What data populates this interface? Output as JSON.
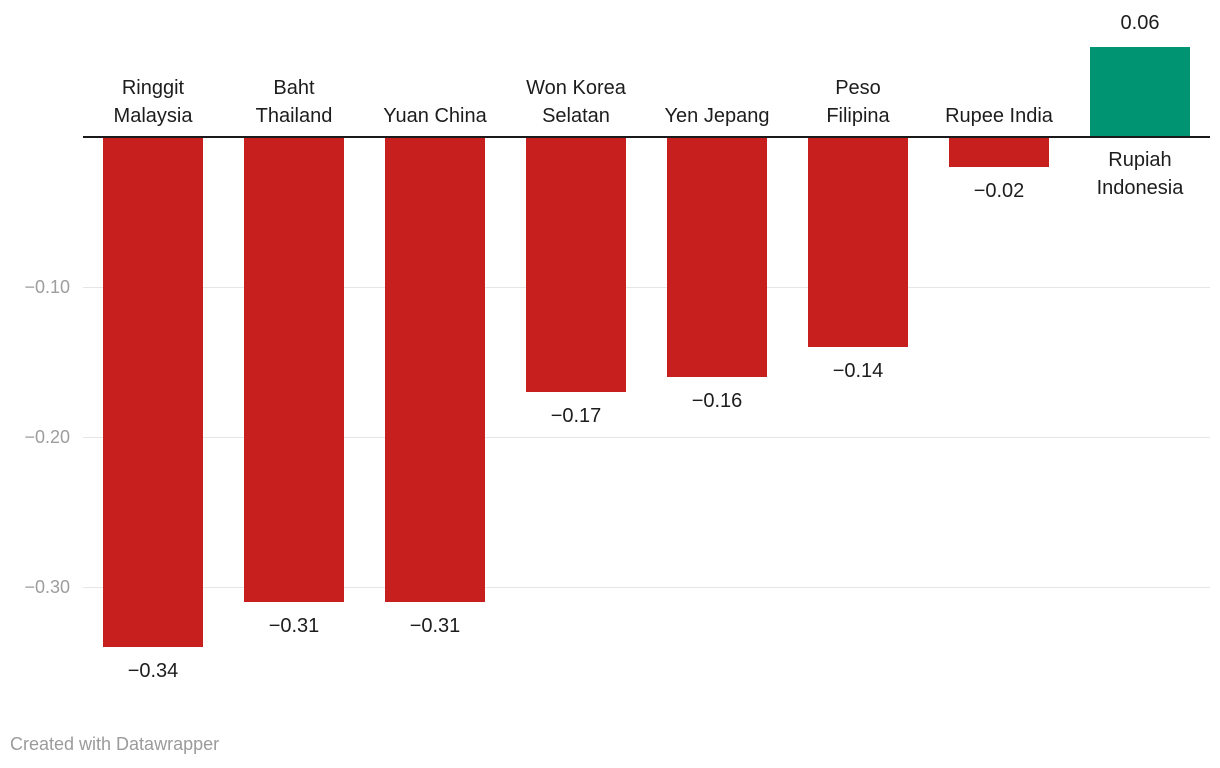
{
  "chart": {
    "footer": "Created with Datawrapper"
  },
  "chart_data": {
    "type": "bar",
    "categories": [
      "Ringgit Malaysia",
      "Baht Thailand",
      "Yuan China",
      "Won Korea Selatan",
      "Yen Jepang",
      "Peso Filipina",
      "Rupee India",
      "Rupiah Indonesia"
    ],
    "values": [
      -0.34,
      -0.31,
      -0.31,
      -0.17,
      -0.16,
      -0.14,
      -0.02,
      0.06
    ],
    "value_labels": [
      "−0.34",
      "−0.31",
      "−0.31",
      "−0.17",
      "−0.16",
      "−0.14",
      "−0.02",
      "0.06"
    ],
    "label_lines": [
      [
        "Ringgit",
        "Malaysia"
      ],
      [
        "Baht",
        "Thailand"
      ],
      [
        "Yuan China"
      ],
      [
        "Won Korea",
        "Selatan"
      ],
      [
        "Yen Jepang"
      ],
      [
        "Peso",
        "Filipina"
      ],
      [
        "Rupee India"
      ],
      [
        "Rupiah",
        "Indonesia"
      ]
    ],
    "y_ticks": [
      {
        "label": "−0.10",
        "value": -0.1
      },
      {
        "label": "−0.20",
        "value": -0.2
      },
      {
        "label": "−0.30",
        "value": -0.3
      }
    ],
    "ylim": [
      -0.37,
      0.08
    ],
    "grid": true,
    "legend": "none",
    "title": "",
    "xlabel": "",
    "ylabel": "",
    "colors": {
      "negative_bar": "#c71f1e",
      "positive_bar": "#009473",
      "axis_label": "#9d9d9d",
      "gridline": "#e6e6e6",
      "baseline": "#1a1a1a",
      "label_text": "#1d1d1d",
      "footer_text": "#9b9b9b"
    }
  }
}
